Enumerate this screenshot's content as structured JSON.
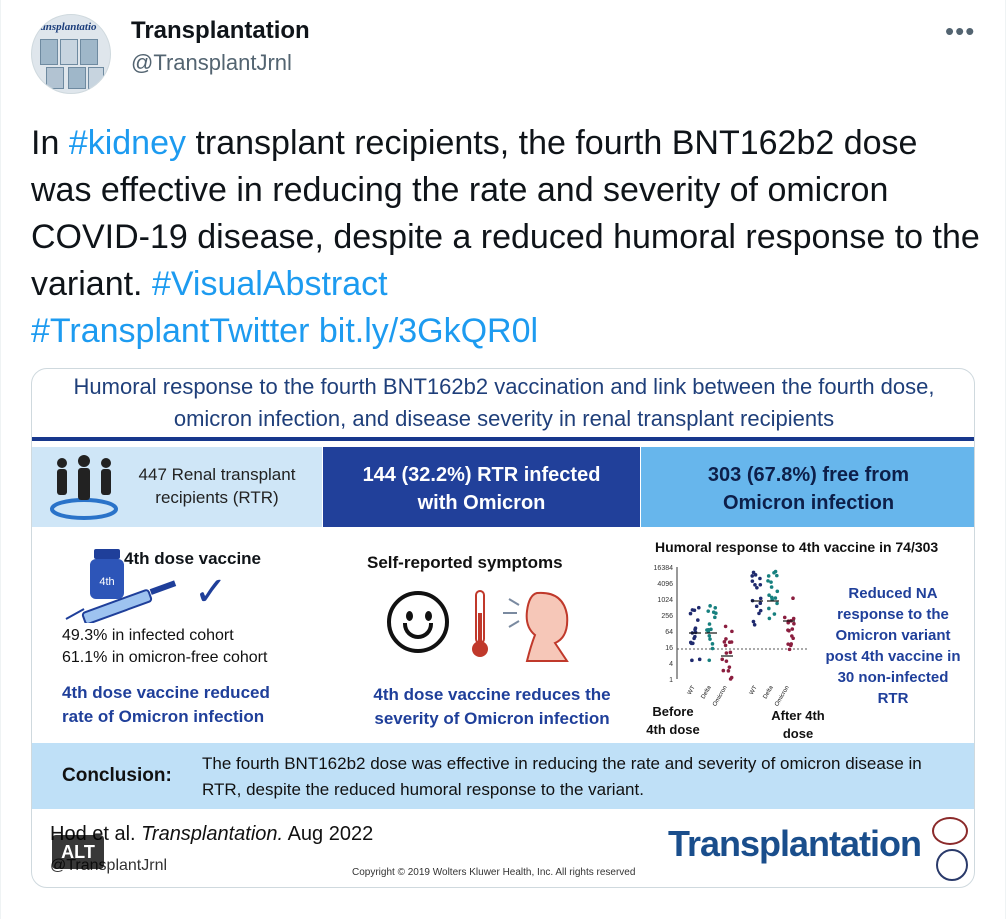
{
  "author": {
    "name": "Transplantation",
    "handle": "@TransplantJrnl",
    "avatar_text": "ransplantatio"
  },
  "menu": {
    "more_icon": "more-horizontal-icon",
    "more_glyph": "•••"
  },
  "tweet": {
    "text_prefix": "In ",
    "hashtag_kidney": "#kidney",
    "text_body": " transplant recipients, the fourth BNT162b2 dose was effective in reducing the rate and severity of omicron COVID-19 disease, despite a reduced humoral response to the variant. ",
    "hashtag_visual": "#VisualAbstract",
    "hashtag_twitter": "#TransplantTwitter",
    "link": "bit.ly/3GkQR0l"
  },
  "abstract": {
    "title": "Humoral response to the fourth BNT162b2 vaccination and link between the fourth dose, omicron infection, and disease severity in renal transplant recipients",
    "box1": "447 Renal transplant recipients (RTR)",
    "box2_line1": "144 (32.2%) RTR infected",
    "box2_line2": "with Omicron",
    "box3_line1": "303 (67.8%) free from",
    "box3_line2": "Omicron infection",
    "vial_label": "4th",
    "dose_title": "4th dose vaccine",
    "check_glyph": "✓",
    "pct_infected": "49.3% in infected cohort",
    "pct_free": "61.1% in omicron-free cohort",
    "conclusion_rate": "4th dose vaccine reduced rate of Omicron infection",
    "symptoms_title": "Self-reported symptoms",
    "conclusion_severity": "4th dose vaccine reduces the severity of Omicron infection",
    "humoral_title": "Humoral response to 4th vaccine in 74/303",
    "na_text": "Reduced NA response to the Omicron variant post 4th vaccine in 30 non-infected RTR",
    "before_label": "Before 4th dose",
    "after_label": "After 4th dose",
    "conclusion_label": "Conclusion:",
    "conclusion_text": "The fourth BNT162b2 dose was effective in reducing the rate and severity of omicron disease in RTR, despite the reduced humoral response to the variant.",
    "citation_author": "Hod et al. ",
    "citation_journal": "Transplantation.",
    "citation_date": " Aug 2022",
    "citation_handle": "@TransplantJrnl",
    "copyright": "Copyright © 2019 Wolters Kluwer Health, Inc. All rights reserved",
    "journal_logo": "Transplantation",
    "alt_badge": "ALT"
  },
  "chart_data": {
    "type": "scatter",
    "y_ticks": [
      "16384",
      "4096",
      "1024",
      "256",
      "64",
      "16",
      "4",
      "1"
    ],
    "groups": [
      {
        "phase": "Before",
        "categories": [
          "WT",
          "Delta",
          "Omicron"
        ]
      },
      {
        "phase": "After",
        "categories": [
          "WT",
          "Delta",
          "Omicron"
        ]
      }
    ],
    "colors": {
      "WT": "#1f2a6e",
      "Delta": "#17807f",
      "Omicron": "#8b1e3f"
    }
  }
}
